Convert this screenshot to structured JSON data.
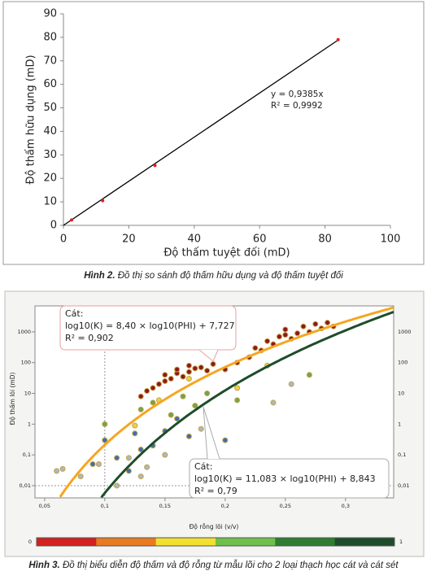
{
  "chart_data": [
    {
      "type": "scatter",
      "xlabel": "Độ thấm tuyệt đối (mD)",
      "ylabel": "Độ thấm hữu dụng (mD)",
      "series": [
        {
          "color": "#e02020",
          "x": [
            2.5,
            12,
            28,
            84
          ],
          "values": [
            2.3,
            10.5,
            25.5,
            79
          ]
        }
      ],
      "trendline_slope": 0.9385,
      "trendline_color": "#000000",
      "annotations": [
        "y = 0,9385x",
        "R² = 0,9992"
      ],
      "xlim": [
        0,
        100
      ],
      "xticks": [
        0,
        20,
        40,
        60,
        80,
        100
      ],
      "ylim": [
        0,
        90
      ],
      "yticks": [
        0,
        10,
        20,
        30,
        40,
        50,
        60,
        70,
        80,
        90
      ],
      "caption_label": "Hình 2.",
      "caption": "Đồ thị so sánh độ thấm hữu dụng và độ thấm tuyệt đối"
    },
    {
      "type": "scatter",
      "log_y": true,
      "xlabel": "Độ rỗng lõi (v/v)",
      "ylabel": "Độ thấm lõi (mD)",
      "series": [
        {
          "color": "#8b1a1a",
          "x": [
            0.13,
            0.135,
            0.14,
            0.145,
            0.15,
            0.15,
            0.155,
            0.16,
            0.16,
            0.165,
            0.17,
            0.17,
            0.175,
            0.18,
            0.185,
            0.19,
            0.2,
            0.21,
            0.22,
            0.225,
            0.23,
            0.235,
            0.24,
            0.245,
            0.25,
            0.25,
            0.255,
            0.26,
            0.265,
            0.27,
            0.275,
            0.28,
            0.285,
            0.29
          ],
          "values": [
            8,
            12,
            15,
            20,
            25,
            40,
            30,
            45,
            60,
            35,
            50,
            80,
            65,
            70,
            55,
            90,
            60,
            100,
            150,
            300,
            250,
            500,
            400,
            700,
            800,
            1200,
            600,
            900,
            1500,
            1000,
            1800,
            1300,
            2000,
            1500
          ]
        },
        {
          "color": "#3a6fb0",
          "x": [
            0.09,
            0.1,
            0.11,
            0.12,
            0.125,
            0.13,
            0.14,
            0.15,
            0.16,
            0.17,
            0.2
          ],
          "values": [
            0.05,
            0.3,
            0.08,
            0.03,
            0.5,
            0.15,
            0.2,
            0.6,
            1.5,
            0.4,
            0.3
          ]
        },
        {
          "color": "#6aa84f",
          "x": [
            0.1,
            0.13,
            0.14,
            0.155,
            0.165,
            0.175,
            0.185,
            0.21,
            0.27
          ],
          "values": [
            1,
            3,
            5,
            2,
            8,
            4,
            10,
            6,
            40
          ]
        },
        {
          "color": "#a8b8c8",
          "x": [
            0.06,
            0.065,
            0.08,
            0.095,
            0.11,
            0.12,
            0.13,
            0.135,
            0.15,
            0.18,
            0.24,
            0.255
          ],
          "values": [
            0.03,
            0.035,
            0.02,
            0.05,
            0.01,
            0.08,
            0.02,
            0.04,
            0.1,
            0.7,
            5,
            20
          ]
        },
        {
          "color": "#e8d24a",
          "x": [
            0.125,
            0.145,
            0.17,
            0.21,
            0.235
          ],
          "values": [
            0.9,
            6,
            30,
            15,
            80
          ]
        }
      ],
      "fits": [
        {
          "color": "#f5a623",
          "a": 8.4,
          "b": 7.727,
          "label": [
            "Cát:",
            "log10(K) = 8,40 × log10(PHI) + 7,727",
            "R² = 0,902"
          ]
        },
        {
          "color": "#1e4d2b",
          "a": 11.083,
          "b": 8.843,
          "label": [
            "Cát:",
            "log10(K) = 11,083 × log10(PHI) + 8,843",
            "R² = 0,79"
          ]
        }
      ],
      "xlim": [
        0.042,
        0.34
      ],
      "xticks": [
        {
          "value": 0.05,
          "label": "0,05"
        },
        {
          "value": 0.1,
          "label": "0,1"
        },
        {
          "value": 0.15,
          "label": "0,15"
        },
        {
          "value": 0.2,
          "label": "0,2"
        },
        {
          "value": 0.25,
          "label": "0,25"
        },
        {
          "value": 0.3,
          "label": "0,3"
        }
      ],
      "ylim": [
        0.004,
        7000
      ],
      "yticks": [
        {
          "value": 0.01,
          "label": "0,01"
        },
        {
          "value": 0.1,
          "label": "0,1"
        },
        1,
        10,
        100,
        1000
      ],
      "colorbar": {
        "colors": [
          "#d42020",
          "#e87a20",
          "#f2e030",
          "#6fbf4a",
          "#2e7d32",
          "#1e4d2b"
        ],
        "ticks": [
          0,
          1
        ]
      },
      "caption_label": "Hình 3.",
      "caption": "Đồ thị biểu diễn độ thấm và độ rỗng từ mẫu lõi cho 2 loại thạch học cát và cát sét"
    }
  ]
}
